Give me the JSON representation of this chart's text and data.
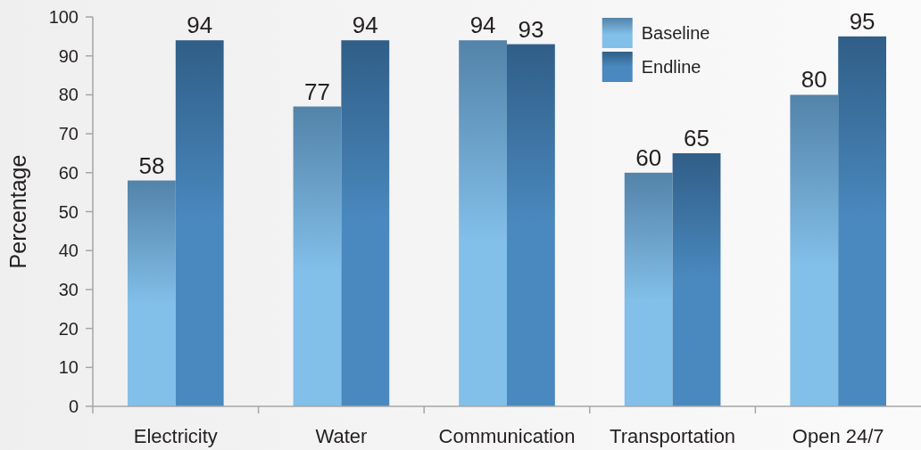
{
  "chart_data": {
    "type": "bar",
    "ylabel": "Percentage",
    "categories": [
      "Electricity",
      "Water",
      "Communication",
      "Transportation",
      "Open 24/7"
    ],
    "series": [
      {
        "name": "Baseline",
        "color": "#82bfe9",
        "values": [
          58,
          77,
          94,
          60,
          80
        ]
      },
      {
        "name": "Endline",
        "color": "#4a89bf",
        "values": [
          94,
          94,
          93,
          65,
          95
        ]
      }
    ],
    "ylim": [
      0,
      100
    ],
    "yticks": [
      0,
      10,
      20,
      30,
      40,
      50,
      60,
      70,
      80,
      90,
      100
    ],
    "legend": "top right",
    "data_labels": true
  }
}
